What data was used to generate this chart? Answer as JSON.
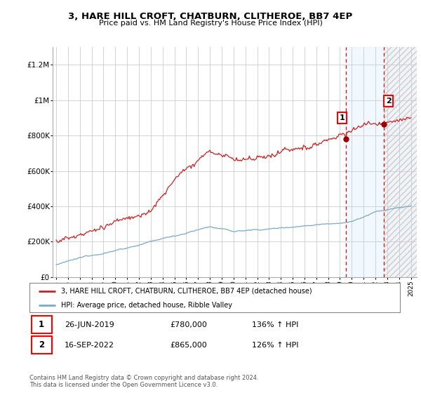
{
  "title": "3, HARE HILL CROFT, CHATBURN, CLITHEROE, BB7 4EP",
  "subtitle": "Price paid vs. HM Land Registry's House Price Index (HPI)",
  "legend_line1": "3, HARE HILL CROFT, CHATBURN, CLITHEROE, BB7 4EP (detached house)",
  "legend_line2": "HPI: Average price, detached house, Ribble Valley",
  "footnote": "Contains HM Land Registry data © Crown copyright and database right 2024.\nThis data is licensed under the Open Government Licence v3.0.",
  "sale1_date": "26-JUN-2019",
  "sale1_price": "£780,000",
  "sale1_hpi": "136% ↑ HPI",
  "sale2_date": "16-SEP-2022",
  "sale2_price": "£865,000",
  "sale2_hpi": "126% ↑ HPI",
  "ylim": [
    0,
    1300000
  ],
  "yticks": [
    0,
    200000,
    400000,
    600000,
    800000,
    1000000,
    1200000
  ],
  "ytick_labels": [
    "£0",
    "£200K",
    "£400K",
    "£600K",
    "£800K",
    "£1M",
    "£1.2M"
  ],
  "property_color": "#cc2222",
  "hpi_color": "#77aacc",
  "sale1_x": 2019.48,
  "sale2_x": 2022.71,
  "grid_color": "#cccccc",
  "shade_color": "#ddeeff",
  "xtick_years": [
    1995,
    1996,
    1997,
    1998,
    1999,
    2000,
    2001,
    2002,
    2003,
    2004,
    2005,
    2006,
    2007,
    2008,
    2009,
    2010,
    2011,
    2012,
    2013,
    2014,
    2015,
    2016,
    2017,
    2018,
    2019,
    2020,
    2021,
    2022,
    2023,
    2024,
    2025
  ]
}
